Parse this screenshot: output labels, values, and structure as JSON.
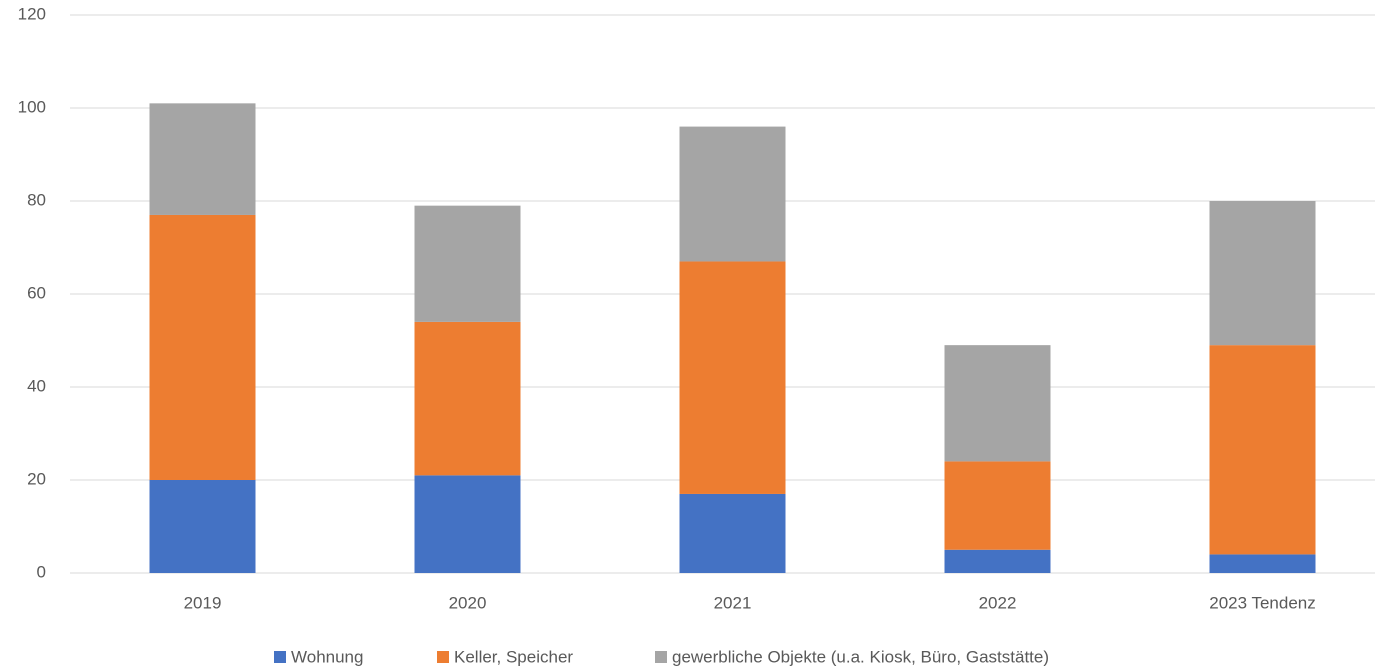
{
  "chart_data": {
    "type": "bar",
    "stacked": true,
    "categories": [
      "2019",
      "2020",
      "2021",
      "2022",
      "2023 Tendenz"
    ],
    "series": [
      {
        "name": "Wohnung",
        "color": "#4472c4",
        "values": [
          20,
          21,
          17,
          5,
          4
        ]
      },
      {
        "name": "Keller, Speicher",
        "color": "#ed7d31",
        "values": [
          57,
          33,
          50,
          19,
          45
        ]
      },
      {
        "name": "gewerbliche Objekte (u.a. Kiosk, Büro, Gaststätte)",
        "color": "#a5a5a5",
        "values": [
          24,
          25,
          29,
          25,
          31
        ]
      }
    ],
    "ylim": [
      0,
      120
    ],
    "yticks": [
      0,
      20,
      40,
      60,
      80,
      100,
      120
    ],
    "grid": true,
    "legend": "bottom"
  }
}
